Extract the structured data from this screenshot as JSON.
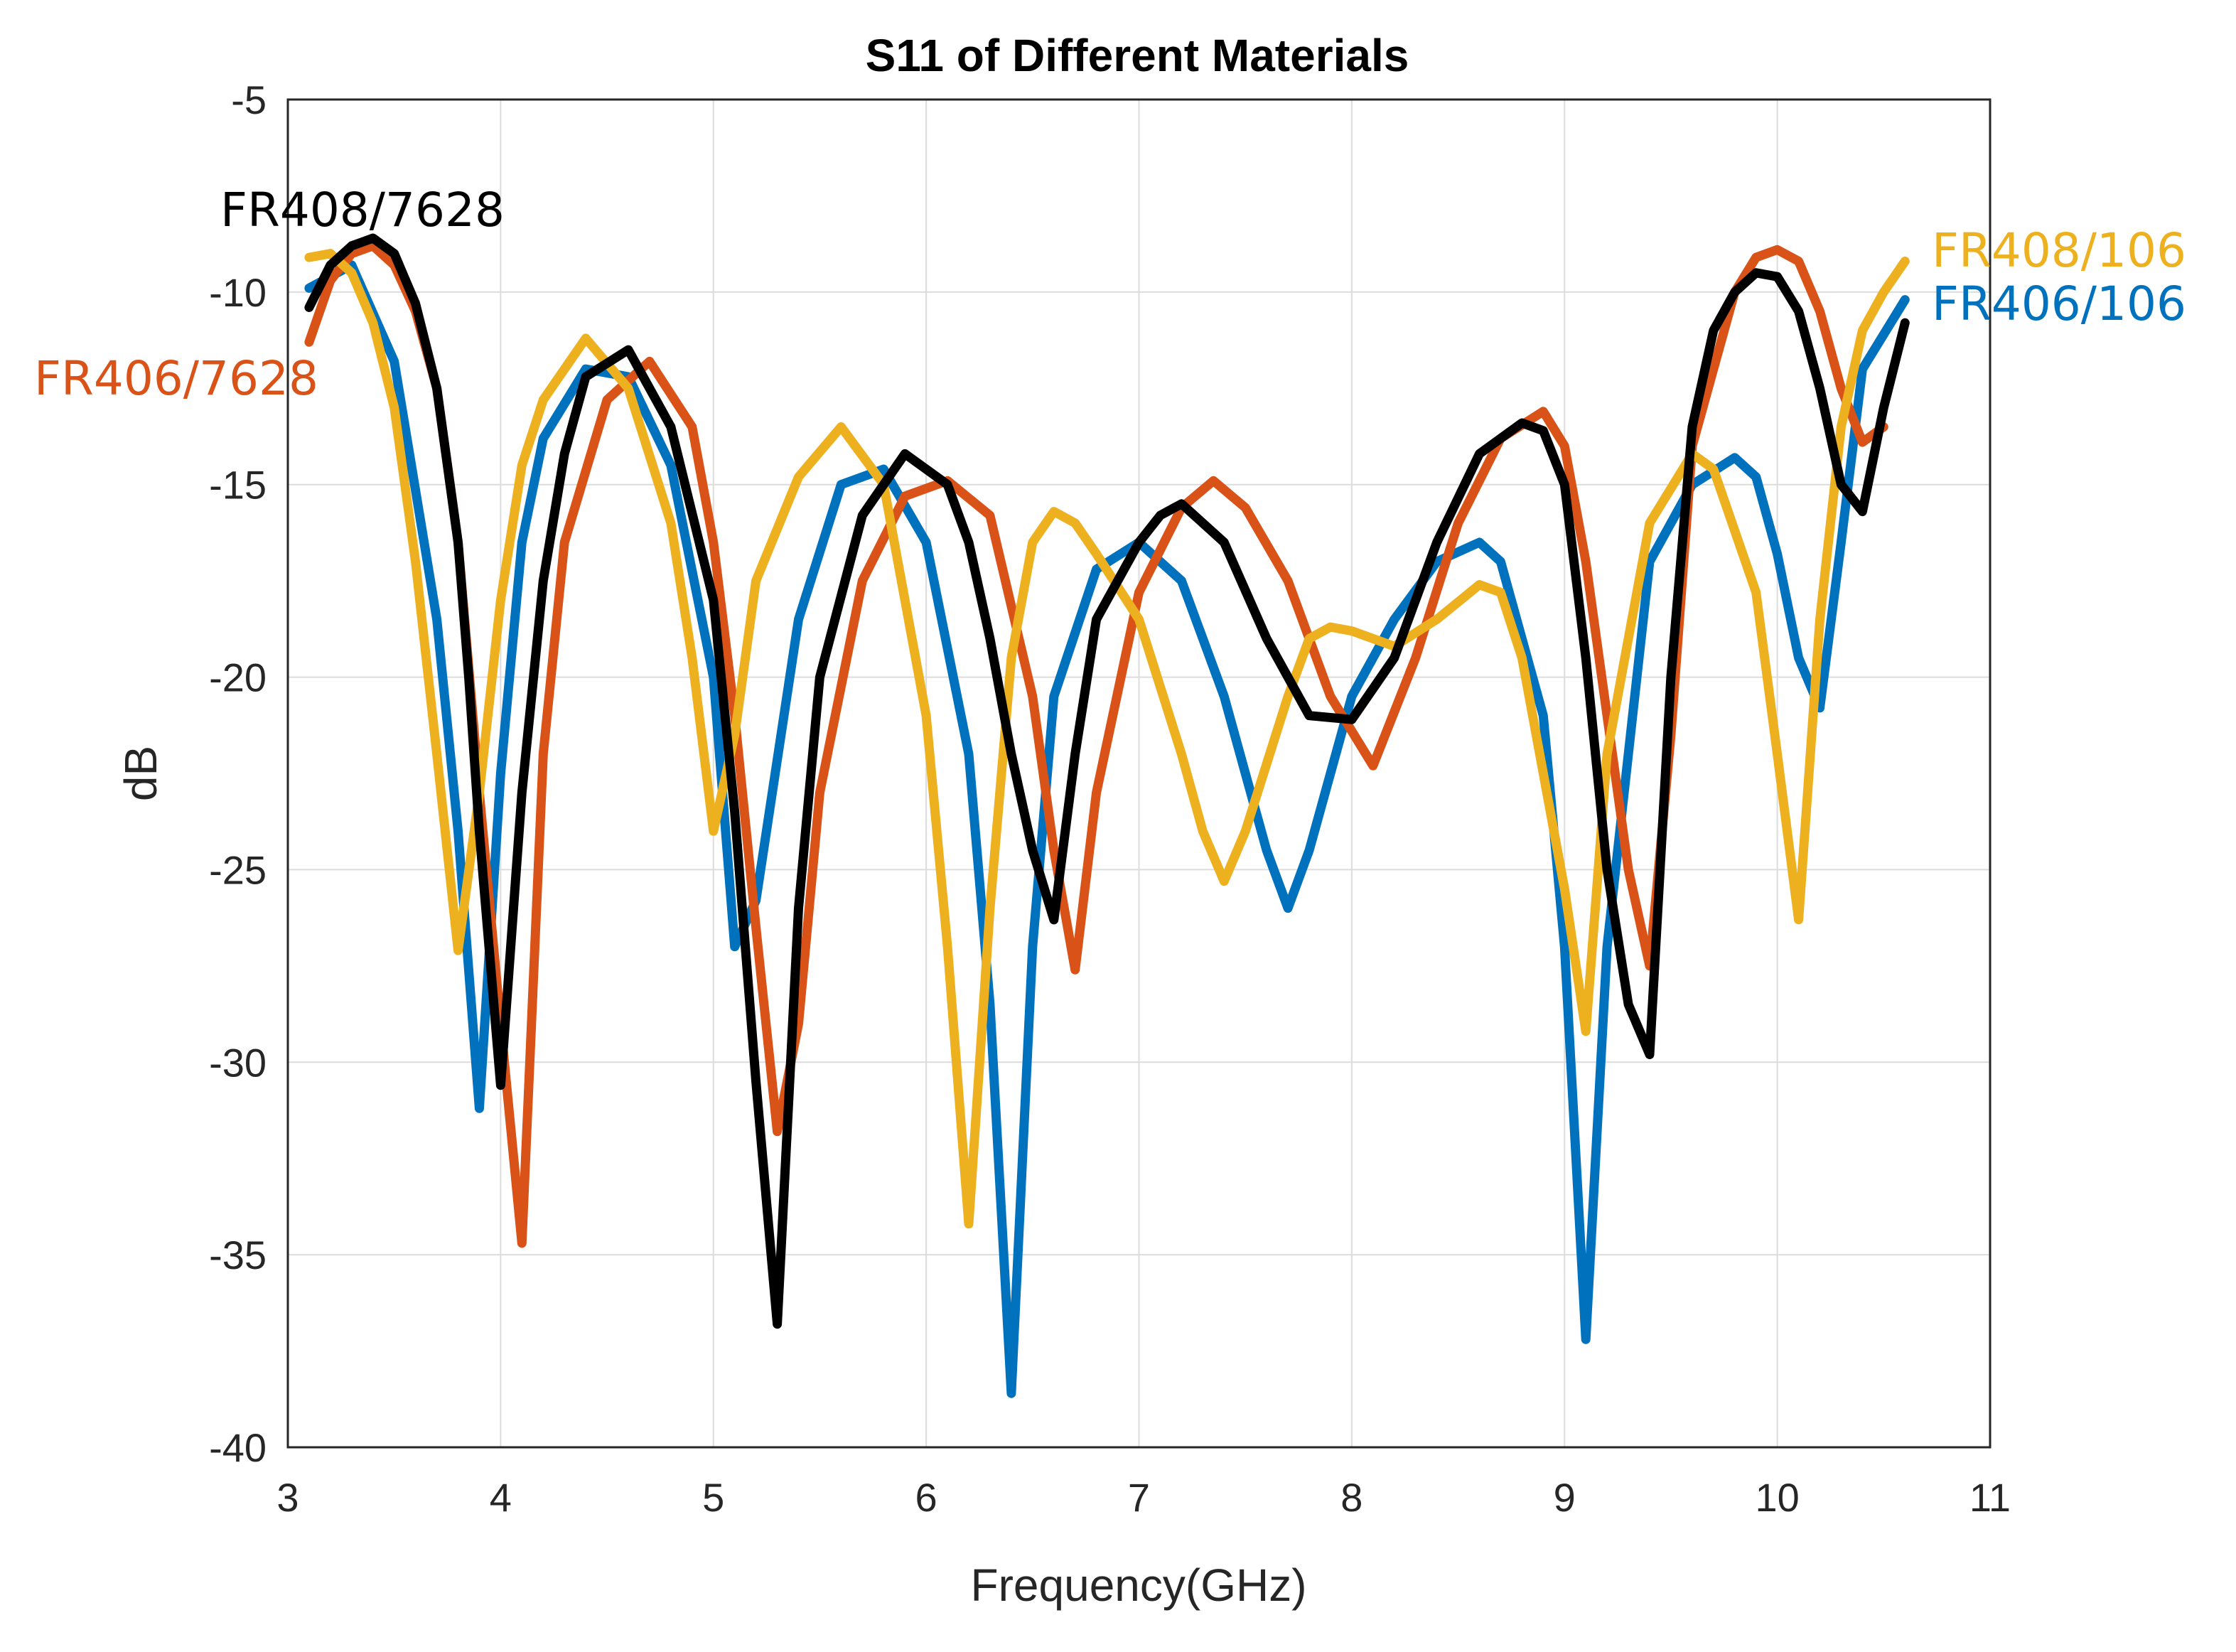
{
  "chart_data": {
    "type": "line",
    "title": "S11 of Different Materials",
    "xlabel": "Frequency(GHz)",
    "ylabel": "dB",
    "xlim": [
      3,
      11
    ],
    "ylim": [
      -40,
      -5
    ],
    "xticks": [
      3,
      4,
      5,
      6,
      7,
      8,
      9,
      10,
      11
    ],
    "yticks": [
      -5,
      -10,
      -15,
      -20,
      -25,
      -30,
      -35,
      -40
    ],
    "grid": true,
    "legend": "inline labels",
    "series": [
      {
        "name": "FR406/106",
        "color": "#0072BD",
        "x": [
          3.1,
          3.3,
          3.5,
          3.7,
          3.8,
          3.9,
          4.0,
          4.1,
          4.2,
          4.4,
          4.6,
          4.8,
          5.0,
          5.1,
          5.2,
          5.4,
          5.6,
          5.8,
          6.0,
          6.2,
          6.3,
          6.4,
          6.5,
          6.6,
          6.8,
          7.0,
          7.2,
          7.4,
          7.6,
          7.7,
          7.8,
          8.0,
          8.2,
          8.4,
          8.6,
          8.7,
          8.9,
          9.0,
          9.1,
          9.2,
          9.4,
          9.6,
          9.8,
          9.9,
          10.0,
          10.1,
          10.2,
          10.3,
          10.4,
          10.6
        ],
        "y": [
          -9.9,
          -9.3,
          -11.8,
          -18.5,
          -24.0,
          -31.2,
          -22.5,
          -16.5,
          -13.8,
          -12.0,
          -12.2,
          -14.5,
          -20.0,
          -27.0,
          -25.8,
          -18.5,
          -15.0,
          -14.6,
          -16.5,
          -22.0,
          -28.5,
          -38.6,
          -27.0,
          -20.5,
          -17.2,
          -16.5,
          -17.5,
          -20.5,
          -24.5,
          -26.0,
          -24.5,
          -20.5,
          -18.5,
          -17.0,
          -16.5,
          -17.0,
          -21.0,
          -27.0,
          -37.2,
          -27.0,
          -17.0,
          -15.0,
          -14.3,
          -14.8,
          -16.8,
          -19.5,
          -20.8,
          -16.5,
          -12.0,
          -10.2
        ]
      },
      {
        "name": "FR406/7628",
        "color": "#D95319",
        "x": [
          3.1,
          3.2,
          3.3,
          3.4,
          3.5,
          3.6,
          3.7,
          3.8,
          3.9,
          4.0,
          4.1,
          4.2,
          4.3,
          4.5,
          4.7,
          4.9,
          5.0,
          5.1,
          5.2,
          5.3,
          5.4,
          5.5,
          5.7,
          5.9,
          6.1,
          6.3,
          6.5,
          6.6,
          6.7,
          6.8,
          7.0,
          7.2,
          7.35,
          7.5,
          7.7,
          7.9,
          8.1,
          8.3,
          8.5,
          8.7,
          8.9,
          9.0,
          9.1,
          9.2,
          9.3,
          9.4,
          9.5,
          9.6,
          9.8,
          9.9,
          10.0,
          10.1,
          10.2,
          10.3,
          10.4,
          10.5
        ],
        "y": [
          -11.3,
          -9.7,
          -9.0,
          -8.8,
          -9.3,
          -10.5,
          -12.5,
          -16.5,
          -23.0,
          -29.0,
          -34.7,
          -22.0,
          -16.5,
          -12.8,
          -11.8,
          -13.5,
          -16.5,
          -21.0,
          -26.5,
          -31.8,
          -29.0,
          -23.0,
          -17.5,
          -15.3,
          -14.9,
          -15.8,
          -20.5,
          -24.5,
          -27.6,
          -23.0,
          -17.8,
          -15.6,
          -14.9,
          -15.6,
          -17.5,
          -20.5,
          -22.3,
          -19.5,
          -16.0,
          -13.8,
          -13.1,
          -14.0,
          -17.0,
          -21.0,
          -25.0,
          -27.5,
          -21.5,
          -14.0,
          -10.0,
          -9.1,
          -8.9,
          -9.2,
          -10.5,
          -12.5,
          -13.9,
          -13.5
        ]
      },
      {
        "name": "FR408/106",
        "color": "#EDB120",
        "x": [
          3.1,
          3.2,
          3.3,
          3.4,
          3.5,
          3.6,
          3.7,
          3.8,
          3.9,
          4.0,
          4.1,
          4.2,
          4.4,
          4.6,
          4.8,
          4.9,
          5.0,
          5.1,
          5.2,
          5.4,
          5.6,
          5.8,
          6.0,
          6.1,
          6.2,
          6.3,
          6.4,
          6.5,
          6.6,
          6.7,
          6.8,
          7.0,
          7.2,
          7.3,
          7.4,
          7.5,
          7.7,
          7.8,
          7.9,
          8.0,
          8.2,
          8.4,
          8.6,
          8.7,
          8.8,
          9.0,
          9.1,
          9.2,
          9.4,
          9.6,
          9.7,
          9.9,
          10.0,
          10.1,
          10.2,
          10.3,
          10.4,
          10.5,
          10.6
        ],
        "y": [
          -9.1,
          -9.0,
          -9.5,
          -10.8,
          -13.0,
          -17.0,
          -22.0,
          -27.1,
          -23.0,
          -18.0,
          -14.5,
          -12.8,
          -11.2,
          -12.5,
          -16.0,
          -19.5,
          -24.0,
          -21.5,
          -17.5,
          -14.8,
          -13.5,
          -15.0,
          -21.0,
          -27.0,
          -34.2,
          -26.0,
          -19.5,
          -16.5,
          -15.7,
          -16.0,
          -16.8,
          -18.5,
          -22.0,
          -24.0,
          -25.3,
          -24.0,
          -20.5,
          -19.0,
          -18.7,
          -18.8,
          -19.2,
          -18.5,
          -17.6,
          -17.8,
          -19.5,
          -25.5,
          -29.2,
          -22.0,
          -16.0,
          -14.2,
          -14.6,
          -17.8,
          -22.0,
          -26.3,
          -18.5,
          -13.5,
          -11.0,
          -10.0,
          -9.2
        ]
      },
      {
        "name": "FR408/7628",
        "color": "#000000",
        "x": [
          3.1,
          3.2,
          3.3,
          3.4,
          3.5,
          3.6,
          3.7,
          3.8,
          3.85,
          3.9,
          4.0,
          4.1,
          4.2,
          4.3,
          4.4,
          4.6,
          4.8,
          5.0,
          5.1,
          5.2,
          5.3,
          5.4,
          5.5,
          5.7,
          5.9,
          6.1,
          6.2,
          6.3,
          6.4,
          6.5,
          6.6,
          6.7,
          6.8,
          7.0,
          7.1,
          7.2,
          7.4,
          7.6,
          7.8,
          8.0,
          8.2,
          8.4,
          8.6,
          8.8,
          8.9,
          9.0,
          9.1,
          9.2,
          9.3,
          9.4,
          9.5,
          9.6,
          9.7,
          9.8,
          9.9,
          10.0,
          10.1,
          10.2,
          10.3,
          10.4,
          10.5,
          10.6
        ],
        "y": [
          -10.4,
          -9.3,
          -8.8,
          -8.6,
          -9.0,
          -10.3,
          -12.5,
          -16.5,
          -20.0,
          -24.0,
          -30.6,
          -23.0,
          -17.5,
          -14.2,
          -12.2,
          -11.5,
          -13.5,
          -18.0,
          -23.5,
          -30.5,
          -36.8,
          -26.0,
          -20.0,
          -15.8,
          -14.2,
          -15.0,
          -16.5,
          -19.0,
          -22.0,
          -24.5,
          -26.3,
          -22.0,
          -18.5,
          -16.5,
          -15.8,
          -15.5,
          -16.5,
          -19.0,
          -21.0,
          -21.1,
          -19.5,
          -16.5,
          -14.2,
          -13.4,
          -13.6,
          -15.0,
          -19.5,
          -25.0,
          -28.5,
          -29.8,
          -20.0,
          -13.5,
          -11.0,
          -10.0,
          -9.5,
          -9.6,
          -10.5,
          -12.5,
          -15.0,
          -15.7,
          -13.0,
          -10.8
        ]
      }
    ],
    "labels": {
      "FR408/7628": "FR408/7628",
      "FR406/7628": "FR406/7628",
      "FR408/106": "FR408/106",
      "FR406/106": "FR406/106"
    }
  }
}
